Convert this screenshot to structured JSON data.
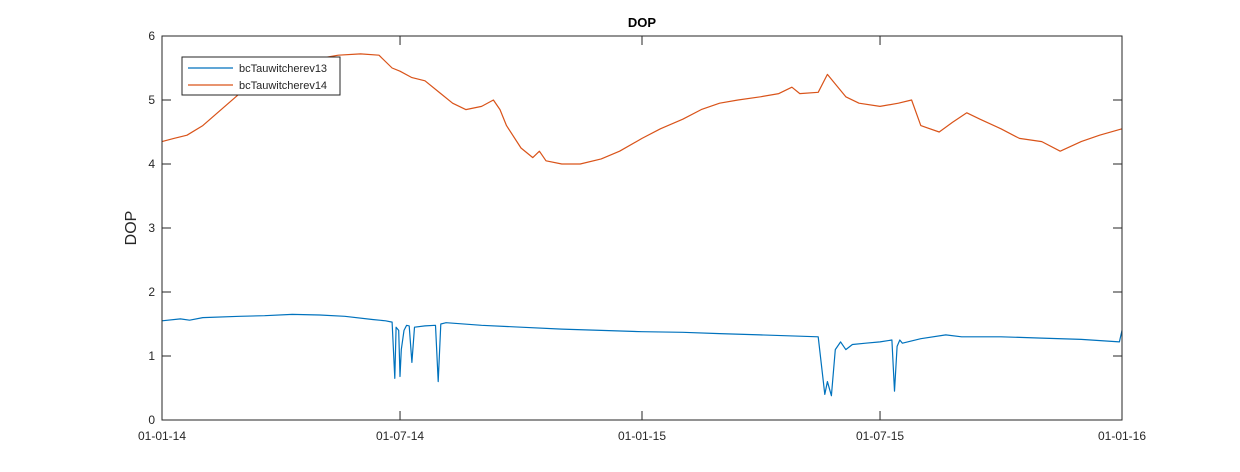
{
  "chart_data": {
    "type": "line",
    "title": "DOP",
    "xlabel": "",
    "ylabel": "DOP",
    "xlim": [
      "2014-01-01",
      "2016-01-01"
    ],
    "ylim": [
      0,
      6
    ],
    "x_ticks": [
      {
        "date": "2014-01-01",
        "label": "01-01-14"
      },
      {
        "date": "2014-07-01",
        "label": "01-07-14"
      },
      {
        "date": "2015-01-01",
        "label": "01-01-15"
      },
      {
        "date": "2015-07-01",
        "label": "01-07-15"
      },
      {
        "date": "2016-01-01",
        "label": "01-01-16"
      }
    ],
    "y_ticks": [
      0,
      1,
      2,
      3,
      4,
      5,
      6
    ],
    "grid": false,
    "legend_position": "top-left",
    "series": [
      {
        "name": "bcTauwitcherev13",
        "color": "#0072BD",
        "points": [
          [
            "2014-01-01",
            1.55
          ],
          [
            "2014-01-15",
            1.58
          ],
          [
            "2014-01-22",
            1.56
          ],
          [
            "2014-02-01",
            1.6
          ],
          [
            "2014-03-01",
            1.62
          ],
          [
            "2014-03-20",
            1.63
          ],
          [
            "2014-04-10",
            1.65
          ],
          [
            "2014-05-01",
            1.64
          ],
          [
            "2014-05-20",
            1.62
          ],
          [
            "2014-06-10",
            1.57
          ],
          [
            "2014-06-20",
            1.55
          ],
          [
            "2014-06-25",
            1.53
          ],
          [
            "2014-06-27",
            0.65
          ],
          [
            "2014-06-28",
            1.45
          ],
          [
            "2014-06-30",
            1.4
          ],
          [
            "2014-07-01",
            0.68
          ],
          [
            "2014-07-02",
            1.1
          ],
          [
            "2014-07-04",
            1.4
          ],
          [
            "2014-07-06",
            1.48
          ],
          [
            "2014-07-08",
            1.47
          ],
          [
            "2014-07-10",
            0.9
          ],
          [
            "2014-07-12",
            1.45
          ],
          [
            "2014-07-20",
            1.47
          ],
          [
            "2014-07-28",
            1.48
          ],
          [
            "2014-07-30",
            0.6
          ],
          [
            "2014-08-01",
            1.5
          ],
          [
            "2014-08-05",
            1.52
          ],
          [
            "2014-09-01",
            1.48
          ],
          [
            "2014-10-01",
            1.45
          ],
          [
            "2014-11-01",
            1.42
          ],
          [
            "2014-12-01",
            1.4
          ],
          [
            "2015-01-01",
            1.38
          ],
          [
            "2015-02-01",
            1.37
          ],
          [
            "2015-03-01",
            1.35
          ],
          [
            "2015-04-01",
            1.33
          ],
          [
            "2015-05-01",
            1.31
          ],
          [
            "2015-05-15",
            1.3
          ],
          [
            "2015-05-20",
            0.4
          ],
          [
            "2015-05-22",
            0.6
          ],
          [
            "2015-05-25",
            0.38
          ],
          [
            "2015-05-28",
            1.1
          ],
          [
            "2015-06-01",
            1.22
          ],
          [
            "2015-06-05",
            1.1
          ],
          [
            "2015-06-10",
            1.18
          ],
          [
            "2015-06-20",
            1.2
          ],
          [
            "2015-07-01",
            1.22
          ],
          [
            "2015-07-10",
            1.25
          ],
          [
            "2015-07-12",
            0.45
          ],
          [
            "2015-07-14",
            1.15
          ],
          [
            "2015-07-16",
            1.25
          ],
          [
            "2015-07-18",
            1.2
          ],
          [
            "2015-08-01",
            1.27
          ],
          [
            "2015-08-20",
            1.33
          ],
          [
            "2015-09-01",
            1.3
          ],
          [
            "2015-10-01",
            1.3
          ],
          [
            "2015-11-01",
            1.28
          ],
          [
            "2015-12-01",
            1.26
          ],
          [
            "2015-12-30",
            1.22
          ],
          [
            "2016-01-01",
            1.4
          ]
        ]
      },
      {
        "name": "bcTauwitcherev14",
        "color": "#D95319",
        "points": [
          [
            "2014-01-01",
            4.35
          ],
          [
            "2014-01-10",
            4.4
          ],
          [
            "2014-01-20",
            4.45
          ],
          [
            "2014-02-01",
            4.6
          ],
          [
            "2014-02-15",
            4.85
          ],
          [
            "2014-03-01",
            5.1
          ],
          [
            "2014-03-15",
            5.3
          ],
          [
            "2014-04-01",
            5.45
          ],
          [
            "2014-04-15",
            5.55
          ],
          [
            "2014-05-01",
            5.65
          ],
          [
            "2014-05-15",
            5.7
          ],
          [
            "2014-06-01",
            5.72
          ],
          [
            "2014-06-15",
            5.7
          ],
          [
            "2014-06-25",
            5.5
          ],
          [
            "2014-07-01",
            5.45
          ],
          [
            "2014-07-10",
            5.35
          ],
          [
            "2014-07-20",
            5.3
          ],
          [
            "2014-08-01",
            5.1
          ],
          [
            "2014-08-10",
            4.95
          ],
          [
            "2014-08-20",
            4.85
          ],
          [
            "2014-09-01",
            4.9
          ],
          [
            "2014-09-10",
            5.0
          ],
          [
            "2014-09-15",
            4.85
          ],
          [
            "2014-09-20",
            4.6
          ],
          [
            "2014-10-01",
            4.25
          ],
          [
            "2014-10-10",
            4.1
          ],
          [
            "2014-10-15",
            4.2
          ],
          [
            "2014-10-20",
            4.05
          ],
          [
            "2014-11-01",
            4.0
          ],
          [
            "2014-11-15",
            4.0
          ],
          [
            "2014-12-01",
            4.08
          ],
          [
            "2014-12-15",
            4.2
          ],
          [
            "2015-01-01",
            4.4
          ],
          [
            "2015-01-15",
            4.55
          ],
          [
            "2015-02-01",
            4.7
          ],
          [
            "2015-02-15",
            4.85
          ],
          [
            "2015-03-01",
            4.95
          ],
          [
            "2015-03-15",
            5.0
          ],
          [
            "2015-04-01",
            5.05
          ],
          [
            "2015-04-15",
            5.1
          ],
          [
            "2015-04-25",
            5.2
          ],
          [
            "2015-05-01",
            5.1
          ],
          [
            "2015-05-15",
            5.12
          ],
          [
            "2015-05-22",
            5.4
          ],
          [
            "2015-05-28",
            5.25
          ],
          [
            "2015-06-05",
            5.05
          ],
          [
            "2015-06-15",
            4.95
          ],
          [
            "2015-07-01",
            4.9
          ],
          [
            "2015-07-15",
            4.95
          ],
          [
            "2015-07-25",
            5.0
          ],
          [
            "2015-08-01",
            4.6
          ],
          [
            "2015-08-15",
            4.5
          ],
          [
            "2015-08-25",
            4.65
          ],
          [
            "2015-09-05",
            4.8
          ],
          [
            "2015-09-15",
            4.7
          ],
          [
            "2015-10-01",
            4.55
          ],
          [
            "2015-10-15",
            4.4
          ],
          [
            "2015-11-01",
            4.35
          ],
          [
            "2015-11-15",
            4.2
          ],
          [
            "2015-12-01",
            4.35
          ],
          [
            "2015-12-15",
            4.45
          ],
          [
            "2016-01-01",
            4.55
          ]
        ]
      }
    ]
  }
}
